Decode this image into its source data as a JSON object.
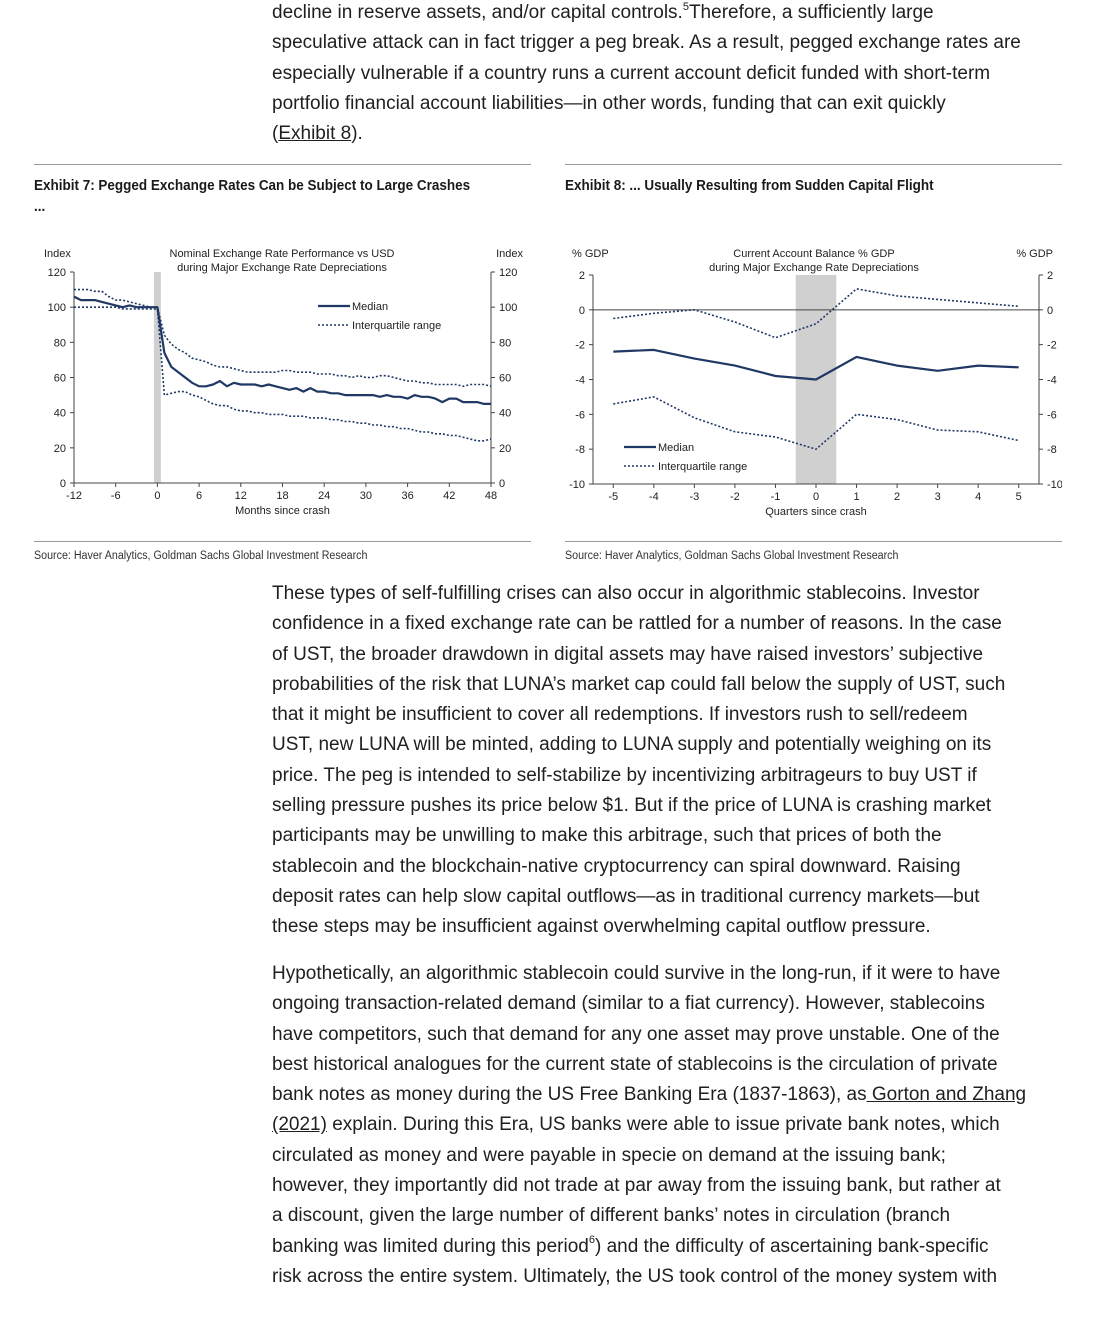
{
  "top_text": {
    "lines": [
      {
        "text": "decline in reserve assets, and/or capital controls.",
        "sup": "5",
        "after": "Therefore, a sufficiently large"
      },
      {
        "text": "speculative attack can in fact trigger a peg break. As a result, pegged exchange rates are"
      },
      {
        "text": "especially vulnerable if a country runs a current account deficit funded with short-term"
      },
      {
        "text": "portfolio financial account liabilities—in other words, funding that can exit quickly"
      }
    ],
    "last_open": "(",
    "last_link": "Exhibit 8",
    "last_close": ")."
  },
  "exhibit7": {
    "title_line1": "Exhibit 7: Pegged Exchange Rates Can be Subject to Large Crashes",
    "title_line2": "...",
    "source": "Source: Haver Analytics, Goldman Sachs Global Investment Research"
  },
  "exhibit8": {
    "title": "Exhibit 8: ... Usually Resulting from Sudden Capital Flight",
    "source": "Source: Haver Analytics, Goldman Sachs Global Investment Research"
  },
  "chart_data": [
    {
      "type": "line",
      "title": "Nominal Exchange Rate Performance vs USD",
      "subtitle": "during Major Exchange Rate Depreciations",
      "xlabel": "Months since crash",
      "ylabel_left": "Index",
      "ylabel_right": "Index",
      "xlim": [
        -12,
        48
      ],
      "ylim": [
        0,
        120
      ],
      "xticks": [
        -12,
        -6,
        0,
        6,
        12,
        18,
        24,
        30,
        36,
        42,
        48
      ],
      "yticks": [
        0,
        20,
        40,
        60,
        80,
        100,
        120
      ],
      "grid": false,
      "legend_position": "upper-right",
      "shaded_x": [
        -0.5,
        0.5
      ],
      "colors": {
        "series": "#1f3864",
        "shade": "#d0d0d0"
      },
      "series": [
        {
          "name": "Median",
          "style": "solid",
          "x": [
            -12,
            -11,
            -10,
            -9,
            -8,
            -7,
            -6,
            -5,
            -4,
            -3,
            -2,
            -1,
            0,
            1,
            2,
            3,
            4,
            5,
            6,
            7,
            8,
            9,
            10,
            11,
            12,
            13,
            14,
            15,
            16,
            17,
            18,
            19,
            20,
            21,
            22,
            23,
            24,
            25,
            26,
            27,
            28,
            29,
            30,
            31,
            32,
            33,
            34,
            35,
            36,
            37,
            38,
            39,
            40,
            41,
            42,
            43,
            44,
            45,
            46,
            47,
            48
          ],
          "y": [
            106,
            104,
            104,
            104,
            103,
            102,
            101,
            100,
            101,
            100,
            100,
            100,
            100,
            74,
            66,
            63,
            60,
            57,
            55,
            55,
            56,
            58,
            55,
            57,
            56,
            56,
            56,
            55,
            56,
            55,
            54,
            53,
            54,
            52,
            54,
            52,
            52,
            51,
            51,
            50,
            50,
            50,
            50,
            50,
            49,
            50,
            49,
            49,
            48,
            50,
            49,
            49,
            48,
            46,
            48,
            48,
            46,
            46,
            46,
            45,
            45
          ]
        },
        {
          "name": "Interquartile range",
          "style": "dotted",
          "x": [
            -12,
            -11,
            -10,
            -9,
            -8,
            -7,
            -6,
            -5,
            -4,
            -3,
            -2,
            -1,
            0,
            1,
            2,
            3,
            4,
            5,
            6,
            7,
            8,
            9,
            10,
            11,
            12,
            13,
            14,
            15,
            16,
            17,
            18,
            19,
            20,
            21,
            22,
            23,
            24,
            25,
            26,
            27,
            28,
            29,
            30,
            31,
            32,
            33,
            34,
            35,
            36,
            37,
            38,
            39,
            40,
            41,
            42,
            43,
            44,
            45,
            46,
            47,
            48
          ],
          "y": [
            110,
            110,
            110,
            109,
            109,
            106,
            104,
            104,
            103,
            102,
            101,
            100,
            100,
            84,
            79,
            76,
            74,
            71,
            70,
            69,
            67,
            66,
            66,
            65,
            64,
            63,
            63,
            63,
            63,
            63,
            64,
            64,
            63,
            63,
            63,
            62,
            62,
            62,
            61,
            61,
            60,
            61,
            60,
            60,
            61,
            61,
            60,
            59,
            58,
            58,
            57,
            57,
            56,
            56,
            56,
            56,
            55,
            56,
            56,
            56,
            55
          ]
        },
        {
          "name": "",
          "style": "dotted",
          "x": [
            -12,
            -11,
            -10,
            -9,
            -8,
            -7,
            -6,
            -5,
            -4,
            -3,
            -2,
            -1,
            0,
            1,
            2,
            3,
            4,
            5,
            6,
            7,
            8,
            9,
            10,
            11,
            12,
            13,
            14,
            15,
            16,
            17,
            18,
            19,
            20,
            21,
            22,
            23,
            24,
            25,
            26,
            27,
            28,
            29,
            30,
            31,
            32,
            33,
            34,
            35,
            36,
            37,
            38,
            39,
            40,
            41,
            42,
            43,
            44,
            45,
            46,
            47,
            48
          ],
          "y": [
            100,
            100,
            100,
            100,
            100,
            100,
            100,
            99,
            99,
            99,
            99,
            99,
            99,
            50,
            51,
            52,
            52,
            50,
            49,
            47,
            45,
            44,
            44,
            42,
            41,
            41,
            40,
            40,
            39,
            39,
            39,
            38,
            38,
            38,
            37,
            37,
            37,
            36,
            36,
            35,
            35,
            34,
            34,
            33,
            33,
            32,
            32,
            31,
            31,
            30,
            29,
            29,
            28,
            28,
            27,
            27,
            26,
            25,
            24,
            24,
            25
          ]
        }
      ]
    },
    {
      "type": "line",
      "title": "Current Account Balance % GDP",
      "subtitle": "during Major Exchange Rate Depreciations",
      "xlabel": "Quarters since crash",
      "ylabel_left": "% GDP",
      "ylabel_right": "% GDP",
      "xlim": [
        -5.5,
        5.5
      ],
      "ylim": [
        -10,
        2
      ],
      "xticks": [
        -5,
        -4,
        -3,
        -2,
        -1,
        0,
        1,
        2,
        3,
        4,
        5
      ],
      "yticks": [
        -10,
        -8,
        -6,
        -4,
        -2,
        0,
        2
      ],
      "grid": false,
      "legend_position": "lower-left",
      "shaded_x": [
        -0.5,
        0.5
      ],
      "colors": {
        "series": "#1f3864",
        "shade": "#d0d0d0"
      },
      "series": [
        {
          "name": "Median",
          "style": "solid",
          "x": [
            -5,
            -4,
            -3,
            -2,
            -1,
            0,
            1,
            2,
            3,
            4,
            5
          ],
          "y": [
            -2.4,
            -2.3,
            -2.8,
            -3.2,
            -3.8,
            -4.0,
            -2.7,
            -3.2,
            -3.5,
            -3.2,
            -3.3
          ]
        },
        {
          "name": "Interquartile range",
          "style": "dotted",
          "x": [
            -5,
            -4,
            -3,
            -2,
            -1,
            0,
            1,
            2,
            3,
            4,
            5
          ],
          "y": [
            -0.5,
            -0.2,
            0.0,
            -0.7,
            -1.6,
            -0.8,
            1.2,
            0.8,
            0.6,
            0.4,
            0.2
          ]
        },
        {
          "name": "",
          "style": "dotted",
          "x": [
            -5,
            -4,
            -3,
            -2,
            -1,
            0,
            1,
            2,
            3,
            4,
            5
          ],
          "y": [
            -5.4,
            -5.0,
            -6.2,
            -7.0,
            -7.3,
            -8.0,
            -6.0,
            -6.3,
            -6.9,
            -7.0,
            -7.5
          ]
        }
      ]
    }
  ],
  "para1": [
    "These types of self-fulfilling crises can also occur in algorithmic stablecoins. Investor",
    "confidence in a fixed exchange rate can be rattled for a number of reasons. In the case",
    "of UST, the broader drawdown in digital assets may have raised investors’ subjective",
    "probabilities of the risk that LUNA’s market cap could fall below the supply of UST, such",
    "that it might be insufficient to cover all redemptions. If investors rush to sell/redeem",
    "UST, new LUNA will be minted, adding to LUNA supply and potentially weighing on its",
    "price. The peg is intended to self-stabilize by incentivizing arbitrageurs to buy UST if",
    "selling pressure pushes its price below $1. But if the price of LUNA is crashing market",
    "participants may be unwilling to make this arbitrage, such that prices of both the",
    "stablecoin and the blockchain-native cryptocurrency can spiral downward. Raising",
    "deposit rates can help slow capital outflows—as in traditional currency markets—but",
    "these steps may be insufficient against overwhelming capital outflow pressure."
  ],
  "para2": {
    "lines_before": [
      "Hypothetically, an algorithmic stablecoin could survive in the long-run, if it were to have",
      "ongoing transaction-related demand (similar to a fiat currency). However, stablecoins",
      "have competitors, such that demand for any one asset may prove unstable. One of the",
      "best historical analogues for the current state of stablecoins is the circulation of private"
    ],
    "line5_text": "bank notes as money during the US Free Banking Era (1837-1863), as",
    "line5_link": " Gorton and Zhang ",
    "line6_link": "(2021)",
    "line6_text": " explain. During this Era, US banks were able to issue private bank notes, which",
    "lines_mid": [
      "circulated as money and were payable in specie on demand at the issuing bank;",
      "however, they importantly did not trade at par away from the issuing bank, but rather at",
      "a discount, given the large number of different banks’ notes in circulation (branch"
    ],
    "line10_text": "banking was limited during this period",
    "line10_sup": "6",
    "line10_after": ") and the difficulty of ascertaining bank-specific",
    "lines_after": [
      "risk across the entire system. Ultimately, the US took control of the money system with"
    ]
  }
}
